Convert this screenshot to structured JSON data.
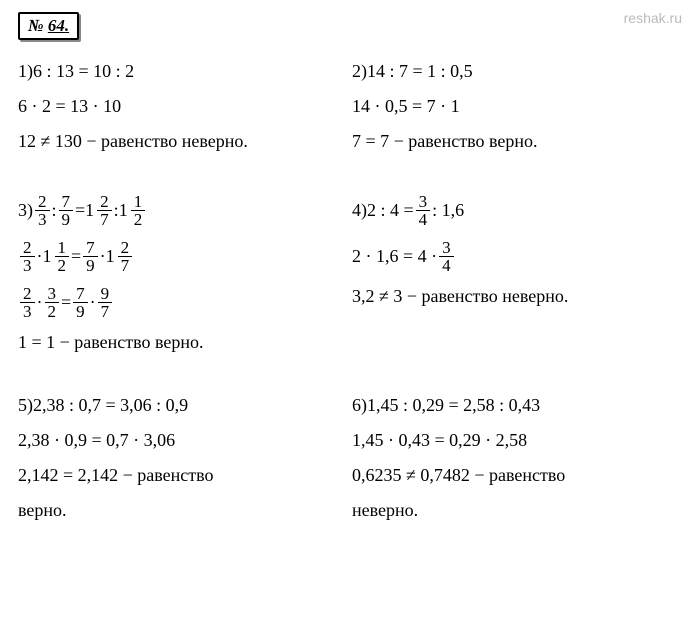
{
  "header": {
    "prefix": "№ ",
    "number": "64."
  },
  "watermark": "reshak.ru",
  "problems": {
    "p1": {
      "label": "1) ",
      "ratio": "6 : 13 = 10 : 2",
      "check": "6 · 2 = 13 · 10",
      "result": "12 ≠ 130 − равенство неверно."
    },
    "p2": {
      "label": "2) ",
      "ratio": "14 : 7 = 1 : 0,5",
      "check": "14 · 0,5 = 7 · 1",
      "result": "7 = 7 − равенство верно."
    },
    "p3": {
      "label": "3) ",
      "f1n": "2",
      "f1d": "3",
      "f2n": "7",
      "f2d": "9",
      "m1w": "1",
      "m1n": "2",
      "m1d": "7",
      "m2w": "1",
      "m2n": "1",
      "m2d": "2",
      "result": "1 = 1 − равенство верно."
    },
    "p4": {
      "label": "4) ",
      "prefix": "2 : 4 = ",
      "f1n": "3",
      "f1d": "4",
      "suffix": " : 1,6",
      "check_prefix": "2 · 1,6 = 4 · ",
      "result": "3,2 ≠ 3 − равенство неверно."
    },
    "p5": {
      "label": "5) ",
      "ratio": "2,38 : 0,7 = 3,06 : 0,9",
      "check": "2,38 · 0,9 = 0,7 · 3,06",
      "result1": "2,142 = 2,142 − равенство",
      "result2": "верно."
    },
    "p6": {
      "label": "6) ",
      "ratio": "1,45 : 0,29 = 2,58 : 0,43",
      "check": "1,45 · 0,43 = 0,29 · 2,58",
      "result1": "0,6235 ≠ 0,7482 − равенство",
      "result2": "неверно."
    }
  },
  "symbols": {
    "colon": " : ",
    "eq": " = ",
    "dot": " · "
  }
}
